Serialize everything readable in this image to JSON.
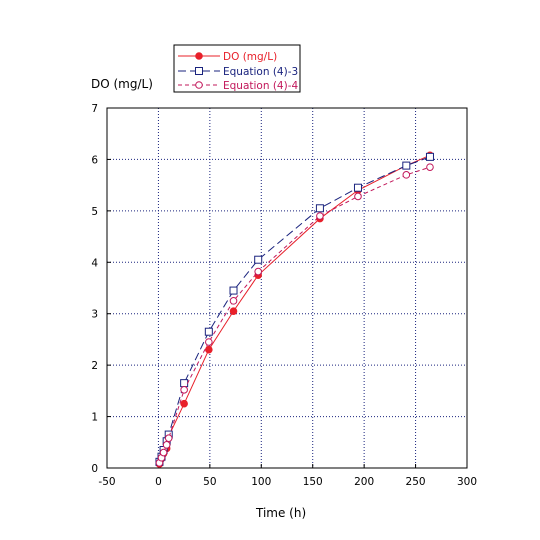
{
  "chart_data": {
    "type": "line",
    "xlabel": "Time (h)",
    "ylabel": "DO (mg/L)",
    "xlim": [
      -50,
      300
    ],
    "ylim": [
      0,
      7
    ],
    "x_ticks": [
      -50,
      0,
      50,
      100,
      150,
      200,
      250,
      300
    ],
    "y_ticks": [
      0,
      1,
      2,
      3,
      4,
      5,
      6,
      7
    ],
    "grid": "dotted",
    "legend_position": "top-left, above plot",
    "series": [
      {
        "name": "DO (mg/L)",
        "color": "#e8202a",
        "marker": "filled-circle",
        "line": "solid",
        "x": [
          1,
          3,
          5,
          8,
          10,
          25,
          49,
          73,
          97,
          157,
          194,
          241,
          264
        ],
        "y": [
          0.08,
          0.18,
          0.28,
          0.38,
          0.62,
          1.25,
          2.3,
          3.05,
          3.75,
          4.85,
          5.4,
          5.88,
          6.08
        ]
      },
      {
        "name": "Equation (4)-3",
        "color": "#1a237e",
        "marker": "open-square",
        "line": "long-dash",
        "x": [
          1,
          3,
          5,
          8,
          10,
          25,
          49,
          73,
          97,
          157,
          194,
          241,
          264
        ],
        "y": [
          0.12,
          0.22,
          0.35,
          0.52,
          0.65,
          1.65,
          2.65,
          3.45,
          4.05,
          5.05,
          5.45,
          5.88,
          6.05
        ]
      },
      {
        "name": "Equation (4)-4",
        "color": "#c2185b",
        "marker": "open-circle",
        "line": "short-dash",
        "x": [
          1,
          3,
          5,
          8,
          10,
          25,
          49,
          73,
          97,
          157,
          194,
          241,
          264
        ],
        "y": [
          0.1,
          0.2,
          0.3,
          0.45,
          0.58,
          1.52,
          2.45,
          3.25,
          3.82,
          4.9,
          5.28,
          5.7,
          5.85
        ]
      }
    ]
  }
}
